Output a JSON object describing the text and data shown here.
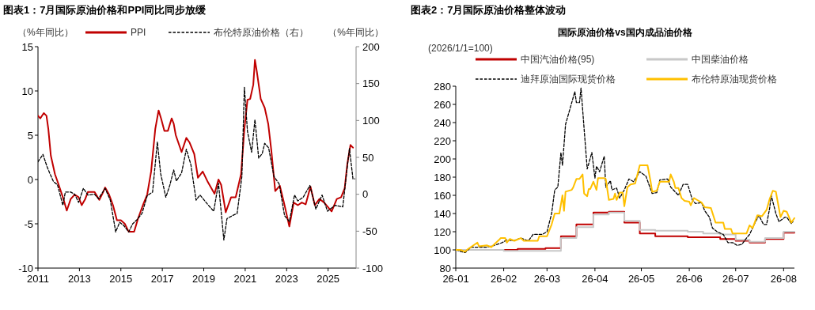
{
  "chart_data": [
    {
      "type": "line",
      "title": "图表1：7月国际原油价格和PPI同比同步放缓",
      "ylabel": "（%年同比）",
      "y2label": "（%年同比）",
      "legend": "top",
      "xlim": [
        2011,
        2026.35
      ],
      "xticks": [
        2011,
        2013,
        2015,
        2017,
        2019,
        2021,
        2023,
        2025
      ],
      "ylim": [
        -10,
        15
      ],
      "yticks": [
        -10,
        -5,
        0,
        5,
        10,
        15
      ],
      "y2lim": [
        -100,
        200
      ],
      "y2ticks": [
        -100,
        -50,
        0,
        50,
        100,
        150,
        200
      ],
      "series": [
        {
          "name": "PPI",
          "color": "#c00000",
          "line_style": "solid",
          "x": [
            2011.0,
            2011.11,
            2011.28,
            2011.41,
            2011.5,
            2011.62,
            2011.82,
            2012.0,
            2012.2,
            2012.39,
            2012.58,
            2012.77,
            2012.96,
            2013.11,
            2013.28,
            2013.41,
            2013.54,
            2013.73,
            2013.96,
            2014.11,
            2014.24,
            2014.43,
            2014.62,
            2014.81,
            2015.0,
            2015.19,
            2015.38,
            2015.64,
            2015.83,
            2016.08,
            2016.27,
            2016.46,
            2016.66,
            2016.82,
            2016.94,
            2017.1,
            2017.27,
            2017.45,
            2017.55,
            2017.65,
            2017.93,
            2018.16,
            2018.31,
            2018.54,
            2018.72,
            2018.95,
            2019.2,
            2019.52,
            2019.71,
            2019.84,
            2020.06,
            2020.32,
            2020.54,
            2020.8,
            2020.96,
            2021.11,
            2021.24,
            2021.39,
            2021.47,
            2021.56,
            2021.75,
            2021.94,
            2022.11,
            2022.26,
            2022.45,
            2022.67,
            2022.87,
            2023.13,
            2023.34,
            2023.54,
            2023.73,
            2023.92,
            2024.15,
            2024.36,
            2024.58,
            2024.81,
            2025.17,
            2025.42,
            2025.63,
            2025.8,
            2025.93,
            2026.08,
            2026.2
          ],
          "values": [
            7.2,
            6.9,
            7.5,
            7.2,
            5.7,
            2.7,
            0.6,
            -0.6,
            -2.0,
            -3.5,
            -2.2,
            -1.7,
            -2.0,
            -2.9,
            -2.2,
            -1.4,
            -1.4,
            -1.4,
            -2.3,
            -1.6,
            -0.9,
            -1.7,
            -2.9,
            -4.6,
            -4.6,
            -5.0,
            -5.9,
            -5.9,
            -4.4,
            -2.8,
            -1.7,
            0.9,
            5.7,
            7.8,
            6.9,
            5.5,
            5.5,
            6.9,
            6.3,
            5.0,
            3.1,
            4.7,
            4.2,
            2.9,
            0.2,
            0.9,
            -0.3,
            -1.6,
            0.0,
            -0.6,
            -3.7,
            -2.0,
            -2.0,
            0.6,
            5.7,
            9.0,
            9.1,
            10.7,
            13.5,
            12.2,
            9.1,
            8.1,
            6.3,
            3.3,
            -1.3,
            -0.7,
            -2.6,
            -5.3,
            -2.6,
            -2.9,
            -2.6,
            -2.8,
            -0.8,
            -2.9,
            -2.2,
            -2.6,
            -3.6,
            -2.2,
            -2.0,
            -1.0,
            1.8,
            3.9,
            3.6
          ]
        },
        {
          "name": "布伦特原油价格（右）",
          "color": "#000000",
          "line_style": "dashed",
          "axis": "y2",
          "x": [
            2011.0,
            2011.24,
            2011.43,
            2011.56,
            2011.75,
            2011.94,
            2012.2,
            2012.32,
            2012.58,
            2012.77,
            2012.96,
            2013.19,
            2013.41,
            2013.73,
            2013.92,
            2014.24,
            2014.49,
            2014.75,
            2014.94,
            2015.13,
            2015.38,
            2015.57,
            2015.76,
            2016.02,
            2016.27,
            2016.53,
            2016.76,
            2016.92,
            2017.17,
            2017.36,
            2017.55,
            2017.68,
            2017.93,
            2018.16,
            2018.38,
            2018.63,
            2018.82,
            2019.2,
            2019.48,
            2019.71,
            2019.97,
            2020.12,
            2020.38,
            2020.61,
            2020.84,
            2020.96,
            2021.11,
            2021.31,
            2021.47,
            2021.65,
            2021.82,
            2021.94,
            2022.13,
            2022.39,
            2022.64,
            2022.9,
            2023.13,
            2023.38,
            2023.54,
            2023.8,
            2024.12,
            2024.41,
            2024.71,
            2024.97,
            2025.33,
            2025.71,
            2025.9,
            2026.03,
            2026.2,
            2026.29
          ],
          "values": [
            44,
            54,
            38,
            29,
            17,
            13,
            -15,
            3,
            3,
            0,
            -11,
            8,
            -1,
            0,
            -6,
            8,
            -8,
            -51,
            -38,
            -42,
            -51,
            -40,
            -35,
            -26,
            -2,
            3,
            71,
            28,
            -4,
            12,
            33,
            18,
            29,
            61,
            40,
            -8,
            -1,
            -14,
            -23,
            15,
            -62,
            -33,
            -29,
            -26,
            24,
            145,
            85,
            57,
            101,
            49,
            55,
            69,
            63,
            24,
            14,
            -29,
            -37,
            -1,
            -9,
            -4,
            12,
            -20,
            -1,
            -23,
            -15,
            -17,
            31,
            62,
            21,
            21
          ]
        }
      ]
    },
    {
      "type": "line",
      "title": "图表2：7月国际原油价格整体波动",
      "subtitle": "国际原油价格vs国内成品油价格",
      "ylabel": "(2026/1/1=100)",
      "legend": "top",
      "xlim": [
        "2026-01-01",
        "2026-08-08"
      ],
      "xticks": [
        {
          "value": "2026-01-01",
          "label": "26-01"
        },
        {
          "value": "2026-02-01",
          "label": "26-02"
        },
        {
          "value": "2026-03-01",
          "label": "26-03"
        },
        {
          "value": "2026-04-01",
          "label": "26-04"
        },
        {
          "value": "2026-05-01",
          "label": "26-05"
        },
        {
          "value": "2026-06-01",
          "label": "26-06"
        },
        {
          "value": "2026-07-01",
          "label": "26-07"
        },
        {
          "value": "2026-08-01",
          "label": "26-08"
        }
      ],
      "ylim": [
        80,
        280
      ],
      "yticks": [
        80,
        100,
        120,
        140,
        160,
        180,
        200,
        220,
        240,
        260,
        280
      ],
      "series": [
        {
          "name": "中国汽油价格(95)",
          "color": "#c00000",
          "type": "step",
          "line_style": "solid",
          "x": [
            "2026-01-01",
            "2026-02-10",
            "2026-02-28",
            "2026-03-10",
            "2026-03-20",
            "2026-03-31",
            "2026-04-10",
            "2026-04-20",
            "2026-04-30",
            "2026-05-10",
            "2026-05-31",
            "2026-06-10",
            "2026-06-21",
            "2026-07-01",
            "2026-07-10",
            "2026-07-20",
            "2026-08-01",
            "2026-08-08"
          ],
          "values": [
            100,
            101,
            102,
            115,
            128,
            141,
            142,
            130,
            118,
            115,
            114,
            114,
            112,
            110,
            108,
            112,
            119,
            119
          ]
        },
        {
          "name": "中国柴油价格",
          "color": "#c8c8c8",
          "type": "step",
          "line_style": "solid",
          "x": [
            "2026-01-01",
            "2026-02-01",
            "2026-03-10",
            "2026-03-20",
            "2026-03-31",
            "2026-04-10",
            "2026-04-20",
            "2026-04-30",
            "2026-05-10",
            "2026-05-31",
            "2026-06-10",
            "2026-06-21",
            "2026-07-01",
            "2026-07-10",
            "2026-07-20",
            "2026-08-01",
            "2026-08-08"
          ],
          "values": [
            100,
            99,
            113,
            125,
            139,
            141,
            132,
            122,
            121,
            120,
            118,
            117,
            111,
            109,
            113,
            120,
            120
          ]
        },
        {
          "name": "迪拜原油国际现货价格",
          "color": "#000000",
          "line_style": "dashed",
          "x": [
            "2026-01-01",
            "2026-01-07",
            "2026-01-11",
            "2026-01-21",
            "2026-01-26",
            "2026-01-31",
            "2026-02-03",
            "2026-02-07",
            "2026-02-12",
            "2026-02-17",
            "2026-02-20",
            "2026-02-26",
            "2026-03-01",
            "2026-03-04",
            "2026-03-06",
            "2026-03-08",
            "2026-03-10",
            "2026-03-11",
            "2026-03-13",
            "2026-03-16",
            "2026-03-19",
            "2026-03-20",
            "2026-03-22",
            "2026-03-23",
            "2026-03-25",
            "2026-03-27",
            "2026-03-30",
            "2026-04-01",
            "2026-04-02",
            "2026-04-04",
            "2026-04-07",
            "2026-04-08",
            "2026-04-11",
            "2026-04-12",
            "2026-04-15",
            "2026-04-17",
            "2026-04-20",
            "2026-04-23",
            "2026-04-26",
            "2026-04-30",
            "2026-05-04",
            "2026-05-08",
            "2026-05-11",
            "2026-05-13",
            "2026-05-18",
            "2026-05-20",
            "2026-05-25",
            "2026-05-28",
            "2026-05-31",
            "2026-06-03",
            "2026-06-05",
            "2026-06-09",
            "2026-06-11",
            "2026-06-14",
            "2026-06-16",
            "2026-06-19",
            "2026-06-23",
            "2026-06-26",
            "2026-06-29",
            "2026-07-02",
            "2026-07-05",
            "2026-07-08",
            "2026-07-10",
            "2026-07-13",
            "2026-07-16",
            "2026-07-19",
            "2026-07-21",
            "2026-07-23",
            "2026-07-24",
            "2026-07-27",
            "2026-07-29",
            "2026-08-02",
            "2026-08-03",
            "2026-08-06",
            "2026-08-07"
          ],
          "values": [
            100,
            97,
            103,
            103,
            105,
            108,
            111,
            110,
            113,
            110,
            117,
            117,
            120,
            140,
            166,
            169,
            207,
            193,
            238,
            256,
            274,
            262,
            262,
            278,
            233,
            189,
            207,
            179,
            192,
            186,
            203,
            169,
            176,
            166,
            168,
            157,
            166,
            178,
            175,
            186,
            181,
            162,
            163,
            177,
            178,
            169,
            160,
            172,
            172,
            155,
            151,
            152,
            143,
            136,
            124,
            120,
            117,
            108,
            108,
            105,
            106,
            113,
            117,
            128,
            138,
            128,
            128,
            146,
            160,
            140,
            131,
            136,
            136,
            129,
            131
          ]
        },
        {
          "name": "布伦特原油现货价格",
          "color": "#ffc000",
          "line_style": "solid",
          "x": [
            "2026-01-01",
            "2026-01-04",
            "2026-01-07",
            "2026-01-09",
            "2026-01-15",
            "2026-01-16",
            "2026-01-21",
            "2026-01-24",
            "2026-01-29",
            "2026-01-30",
            "2026-02-02",
            "2026-02-03",
            "2026-02-05",
            "2026-02-08",
            "2026-02-12",
            "2026-02-14",
            "2026-02-23",
            "2026-02-24",
            "2026-03-01",
            "2026-03-04",
            "2026-03-06",
            "2026-03-09",
            "2026-03-11",
            "2026-03-12",
            "2026-03-13",
            "2026-03-17",
            "2026-03-18",
            "2026-03-20",
            "2026-03-22",
            "2026-03-24",
            "2026-03-25",
            "2026-03-27",
            "2026-03-28",
            "2026-03-29",
            "2026-03-31",
            "2026-04-02",
            "2026-04-03",
            "2026-04-07",
            "2026-04-08",
            "2026-04-10",
            "2026-04-13",
            "2026-04-14",
            "2026-04-15",
            "2026-04-17",
            "2026-04-19",
            "2026-04-20",
            "2026-04-22",
            "2026-04-24",
            "2026-04-27",
            "2026-04-30",
            "2026-05-05",
            "2026-05-07",
            "2026-05-08",
            "2026-05-11",
            "2026-05-13",
            "2026-05-19",
            "2026-05-20",
            "2026-05-22",
            "2026-05-23",
            "2026-05-25",
            "2026-05-27",
            "2026-05-29",
            "2026-06-01",
            "2026-06-02",
            "2026-06-04",
            "2026-06-06",
            "2026-06-09",
            "2026-06-11",
            "2026-06-15",
            "2026-06-18",
            "2026-06-23",
            "2026-06-24",
            "2026-06-28",
            "2026-06-29",
            "2026-07-04",
            "2026-07-08",
            "2026-07-10",
            "2026-07-12",
            "2026-07-15",
            "2026-07-18",
            "2026-07-21",
            "2026-07-23",
            "2026-07-25",
            "2026-07-27",
            "2026-07-30",
            "2026-08-01",
            "2026-08-03",
            "2026-08-06",
            "2026-08-08"
          ],
          "values": [
            100,
            100,
            98,
            101,
            108,
            104,
            105,
            103,
            111,
            113,
            113,
            108,
            112,
            110,
            113,
            110,
            110,
            115,
            115,
            128,
            140,
            140,
            160,
            143,
            164,
            166,
            169,
            178,
            178,
            183,
            162,
            159,
            167,
            167,
            175,
            166,
            179,
            179,
            178,
            155,
            156,
            162,
            155,
            163,
            163,
            148,
            169,
            172,
            173,
            193,
            193,
            175,
            164,
            165,
            175,
            175,
            183,
            175,
            168,
            168,
            157,
            154,
            153,
            149,
            157,
            155,
            152,
            147,
            146,
            130,
            130,
            123,
            123,
            118,
            118,
            118,
            127,
            124,
            138,
            137,
            144,
            156,
            165,
            164,
            136,
            143,
            142,
            130,
            135
          ]
        }
      ]
    }
  ]
}
